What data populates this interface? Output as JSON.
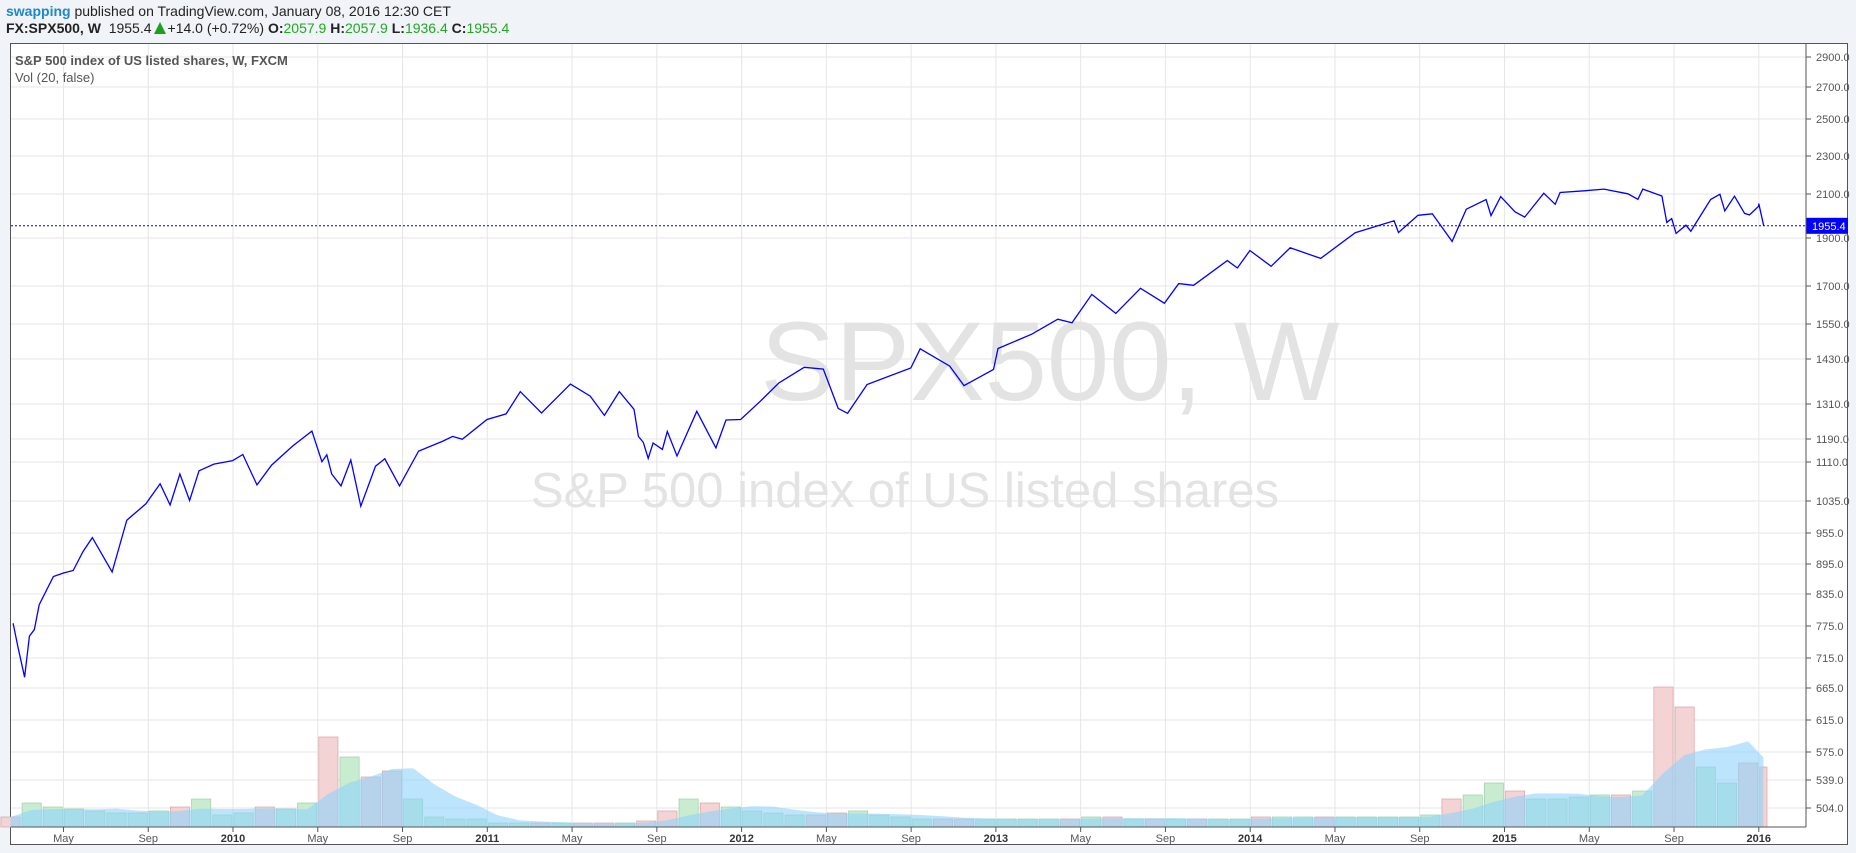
{
  "header": {
    "user": "swapping",
    "published": "published on TradingView.com, January 08, 2016 12:30 CET",
    "symbol": "FX:SPX500, W",
    "last": "1955.4",
    "change": "+14.0 (+0.72%)",
    "o_label": "O:",
    "o": "2057.9",
    "h_label": "H:",
    "h": "2057.9",
    "l_label": "L:",
    "l": "1936.4",
    "c_label": "C:",
    "c": "1955.4"
  },
  "legend": {
    "title": "S&P 500 index of US listed shares, W, FXCM",
    "vol": "Vol (20, false)"
  },
  "watermark": {
    "symbol": "SPX500, W",
    "description": "S&P 500 index of US listed shares"
  },
  "colors": {
    "line": "#0000ff",
    "up_vol": "#c9ebd0",
    "down_vol": "#f3d3d3",
    "vol_ma": "#8fd3fb"
  },
  "chart_data": {
    "type": "line",
    "title": "S&P 500 index of US listed shares, W, FXCM",
    "current_value_label": "1955.4",
    "y_ticks": [
      "2900.0",
      "2700.0",
      "2500.0",
      "2300.0",
      "2100.0",
      "1900.0",
      "1700.0",
      "1550.0",
      "1430.0",
      "1310.0",
      "1190.0",
      "1110.0",
      "1035.0",
      "955.0",
      "895.0",
      "835.0",
      "775.0",
      "715.0",
      "665.0",
      "615.0",
      "575.0",
      "539.0",
      "504.0"
    ],
    "x_ticks": [
      {
        "label": "May",
        "date": "2009-05-01"
      },
      {
        "label": "Sep",
        "date": "2009-09-01"
      },
      {
        "label": "2010",
        "date": "2010-01-01"
      },
      {
        "label": "May",
        "date": "2010-05-01"
      },
      {
        "label": "Sep",
        "date": "2010-09-01"
      },
      {
        "label": "2011",
        "date": "2011-01-01"
      },
      {
        "label": "May",
        "date": "2011-05-01"
      },
      {
        "label": "Sep",
        "date": "2011-09-01"
      },
      {
        "label": "2012",
        "date": "2012-01-01"
      },
      {
        "label": "May",
        "date": "2012-05-01"
      },
      {
        "label": "Sep",
        "date": "2012-09-01"
      },
      {
        "label": "2013",
        "date": "2013-01-01"
      },
      {
        "label": "May",
        "date": "2013-05-01"
      },
      {
        "label": "Sep",
        "date": "2013-09-01"
      },
      {
        "label": "2014",
        "date": "2014-01-01"
      },
      {
        "label": "May",
        "date": "2014-05-01"
      },
      {
        "label": "Sep",
        "date": "2014-09-01"
      },
      {
        "label": "2015",
        "date": "2015-01-01"
      },
      {
        "label": "May",
        "date": "2015-05-01"
      },
      {
        "label": "Sep",
        "date": "2015-09-01"
      },
      {
        "label": "2016",
        "date": "2016-01-01"
      }
    ],
    "series": [
      {
        "name": "SPX500 close",
        "points": [
          [
            "2009-02-20",
            780
          ],
          [
            "2009-02-27",
            735
          ],
          [
            "2009-03-06",
            683
          ],
          [
            "2009-03-13",
            756
          ],
          [
            "2009-03-20",
            768
          ],
          [
            "2009-03-27",
            815
          ],
          [
            "2009-04-17",
            870
          ],
          [
            "2009-05-01",
            877
          ],
          [
            "2009-05-15",
            882
          ],
          [
            "2009-05-29",
            919
          ],
          [
            "2009-06-12",
            946
          ],
          [
            "2009-07-10",
            879
          ],
          [
            "2009-07-31",
            987
          ],
          [
            "2009-08-28",
            1028
          ],
          [
            "2009-09-18",
            1068
          ],
          [
            "2009-10-02",
            1025
          ],
          [
            "2009-10-16",
            1087
          ],
          [
            "2009-10-30",
            1036
          ],
          [
            "2009-11-13",
            1093
          ],
          [
            "2009-12-04",
            1106
          ],
          [
            "2009-12-31",
            1115
          ],
          [
            "2010-01-15",
            1136
          ],
          [
            "2010-02-05",
            1066
          ],
          [
            "2010-02-26",
            1104
          ],
          [
            "2010-03-26",
            1166
          ],
          [
            "2010-04-23",
            1217
          ],
          [
            "2010-05-07",
            1111
          ],
          [
            "2010-05-14",
            1135
          ],
          [
            "2010-05-21",
            1087
          ],
          [
            "2010-06-04",
            1064
          ],
          [
            "2010-06-18",
            1117
          ],
          [
            "2010-07-02",
            1022
          ],
          [
            "2010-07-23",
            1102
          ],
          [
            "2010-08-06",
            1121
          ],
          [
            "2010-08-27",
            1064
          ],
          [
            "2010-09-24",
            1148
          ],
          [
            "2010-10-29",
            1183
          ],
          [
            "2010-11-12",
            1199
          ],
          [
            "2010-11-26",
            1189
          ],
          [
            "2010-12-31",
            1257
          ],
          [
            "2011-01-28",
            1276
          ],
          [
            "2011-02-18",
            1343
          ],
          [
            "2011-03-18",
            1279
          ],
          [
            "2011-04-29",
            1363
          ],
          [
            "2011-05-27",
            1331
          ],
          [
            "2011-06-17",
            1271
          ],
          [
            "2011-07-08",
            1343
          ],
          [
            "2011-07-29",
            1292
          ],
          [
            "2011-08-05",
            1199
          ],
          [
            "2011-08-12",
            1178
          ],
          [
            "2011-08-19",
            1123
          ],
          [
            "2011-08-26",
            1176
          ],
          [
            "2011-09-09",
            1154
          ],
          [
            "2011-09-16",
            1216
          ],
          [
            "2011-09-30",
            1131
          ],
          [
            "2011-10-28",
            1285
          ],
          [
            "2011-11-25",
            1159
          ],
          [
            "2011-12-09",
            1255
          ],
          [
            "2011-12-30",
            1257
          ],
          [
            "2012-01-27",
            1316
          ],
          [
            "2012-02-24",
            1366
          ],
          [
            "2012-03-30",
            1408
          ],
          [
            "2012-04-27",
            1403
          ],
          [
            "2012-05-18",
            1295
          ],
          [
            "2012-06-01",
            1278
          ],
          [
            "2012-06-29",
            1362
          ],
          [
            "2012-08-31",
            1406
          ],
          [
            "2012-09-14",
            1465
          ],
          [
            "2012-10-26",
            1411
          ],
          [
            "2012-11-16",
            1359
          ],
          [
            "2012-12-28",
            1402
          ],
          [
            "2013-01-04",
            1466
          ],
          [
            "2013-02-22",
            1515
          ],
          [
            "2013-03-29",
            1569
          ],
          [
            "2013-04-19",
            1555
          ],
          [
            "2013-05-17",
            1667
          ],
          [
            "2013-06-21",
            1592
          ],
          [
            "2013-07-26",
            1691
          ],
          [
            "2013-08-30",
            1632
          ],
          [
            "2013-09-20",
            1710
          ],
          [
            "2013-10-11",
            1703
          ],
          [
            "2013-11-29",
            1806
          ],
          [
            "2013-12-13",
            1775
          ],
          [
            "2013-12-31",
            1848
          ],
          [
            "2014-01-31",
            1782
          ],
          [
            "2014-02-28",
            1859
          ],
          [
            "2014-04-11",
            1815
          ],
          [
            "2014-05-30",
            1924
          ],
          [
            "2014-07-25",
            1978
          ],
          [
            "2014-08-01",
            1925
          ],
          [
            "2014-08-29",
            2003
          ],
          [
            "2014-09-19",
            2010
          ],
          [
            "2014-10-17",
            1886
          ],
          [
            "2014-11-07",
            2031
          ],
          [
            "2014-12-05",
            2075
          ],
          [
            "2014-12-12",
            2002
          ],
          [
            "2014-12-26",
            2088
          ],
          [
            "2015-01-16",
            2019
          ],
          [
            "2015-01-30",
            1995
          ],
          [
            "2015-02-27",
            2104
          ],
          [
            "2015-03-13",
            2053
          ],
          [
            "2015-03-20",
            2108
          ],
          [
            "2015-04-24",
            2117
          ],
          [
            "2015-05-22",
            2126
          ],
          [
            "2015-06-26",
            2101
          ],
          [
            "2015-07-10",
            2076
          ],
          [
            "2015-07-17",
            2126
          ],
          [
            "2015-08-14",
            2091
          ],
          [
            "2015-08-21",
            1971
          ],
          [
            "2015-08-28",
            1988
          ],
          [
            "2015-09-04",
            1921
          ],
          [
            "2015-09-18",
            1958
          ],
          [
            "2015-09-25",
            1931
          ],
          [
            "2015-10-23",
            2075
          ],
          [
            "2015-11-06",
            2099
          ],
          [
            "2015-11-13",
            2023
          ],
          [
            "2015-11-27",
            2090
          ],
          [
            "2015-12-11",
            2012
          ],
          [
            "2015-12-18",
            2005
          ],
          [
            "2015-12-31",
            2044
          ],
          [
            "2016-01-01",
            2056
          ],
          [
            "2016-01-08",
            1955.4
          ]
        ]
      }
    ],
    "volume": {
      "name": "Vol (20, false)",
      "unit": "relative",
      "start_month": "2009-02",
      "values": [
        5,
        12,
        10,
        9,
        8,
        7,
        7,
        8,
        10,
        14,
        6,
        7,
        10,
        9,
        12,
        45,
        35,
        25,
        28,
        14,
        5,
        4,
        4,
        2,
        2,
        2,
        2,
        2,
        2,
        2,
        3,
        8,
        14,
        12,
        10,
        8,
        7,
        6,
        6,
        7,
        8,
        6,
        5,
        4,
        4,
        4,
        4,
        4,
        4,
        4,
        4,
        5,
        5,
        4,
        4,
        4,
        4,
        4,
        4,
        5,
        5,
        5,
        5,
        5,
        5,
        5,
        5,
        6,
        14,
        16,
        22,
        18,
        14,
        14,
        15,
        16,
        16,
        18,
        70,
        60,
        30,
        22,
        32,
        30
      ]
    },
    "grid": true
  }
}
